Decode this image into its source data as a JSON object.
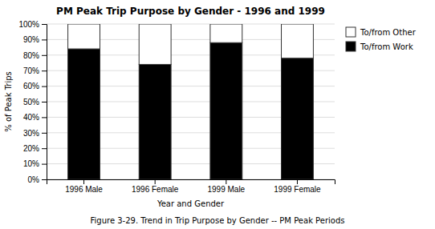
{
  "chart_data": {
    "type": "bar",
    "stacked": true,
    "title": "PM Peak Trip Purpose by Gender - 1996 and 1999",
    "xlabel": "Year and Gender",
    "ylabel": "% of Peak Trips",
    "caption": "Figure 3-29. Trend in Trip Purpose by Gender -- PM Peak Periods",
    "categories": [
      "1996 Male",
      "1996 Female",
      "1999 Male",
      "1999 Female"
    ],
    "series": [
      {
        "name": "To/from Work",
        "color": "#000000",
        "values": [
          0.84,
          0.74,
          0.88,
          0.78
        ]
      },
      {
        "name": "To/from Other",
        "color": "#ffffff",
        "values": [
          0.16,
          0.26,
          0.12,
          0.22
        ]
      }
    ],
    "ylim": [
      0,
      1.0
    ],
    "yticks": [
      {
        "value": 0.0,
        "label": "0%"
      },
      {
        "value": 0.1,
        "label": "10%"
      },
      {
        "value": 0.2,
        "label": "20%"
      },
      {
        "value": 0.3,
        "label": "30%"
      },
      {
        "value": 0.4,
        "label": "40%"
      },
      {
        "value": 0.5,
        "label": "50%"
      },
      {
        "value": 0.6,
        "label": "60%"
      },
      {
        "value": 0.7,
        "label": "70%"
      },
      {
        "value": 0.8,
        "label": "80%"
      },
      {
        "value": 0.9,
        "label": "90%"
      },
      {
        "value": 1.0,
        "label": "100%"
      }
    ],
    "grid": true,
    "legend": "right"
  }
}
